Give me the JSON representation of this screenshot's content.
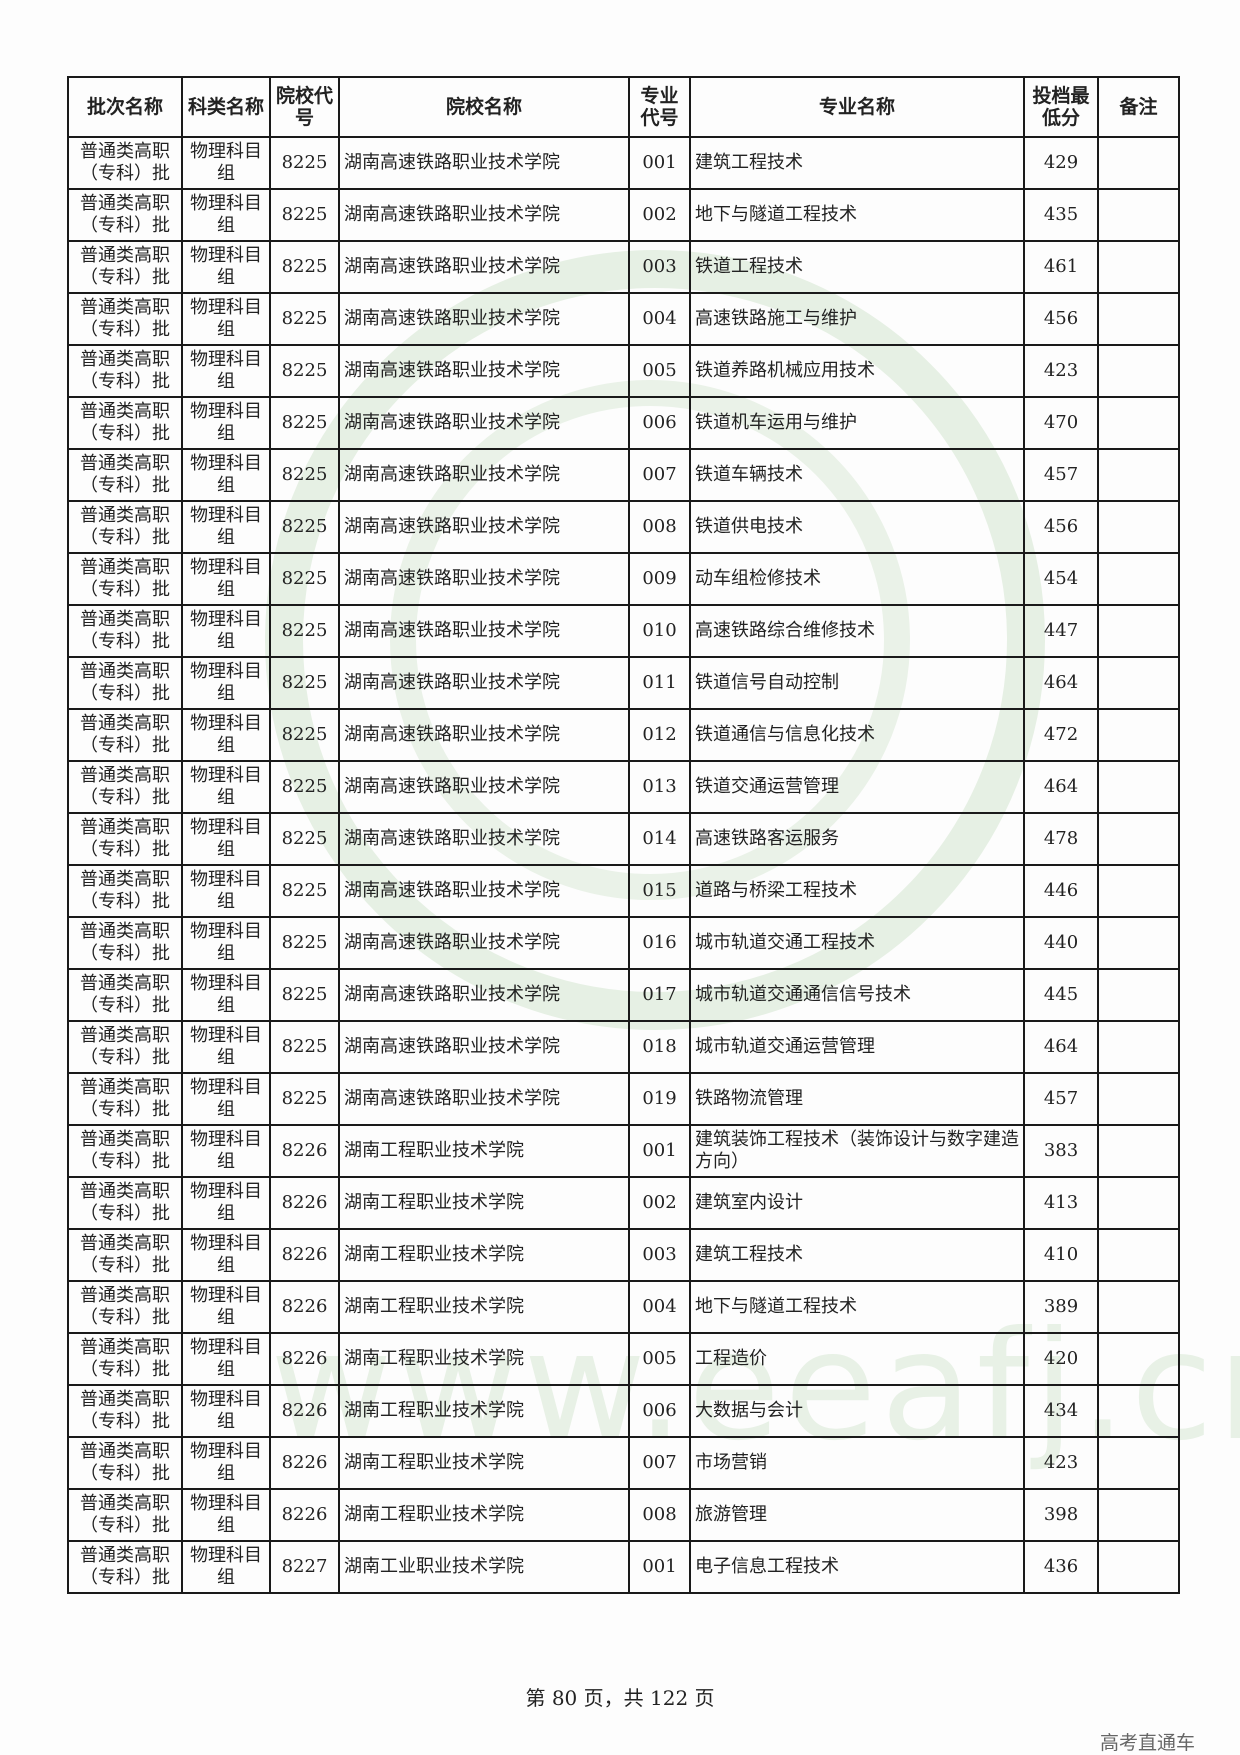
{
  "headers": [
    "批次名称",
    "科类名称",
    "院校代号",
    "院校名称",
    "专业代号",
    "专业名称",
    "投档最低分",
    "备注"
  ],
  "rows": [
    {
      "batch": "普通类高职（专科）批",
      "subject": "物理科目组",
      "school_code": "8225",
      "school": "湖南高速铁路职业技术学院",
      "major_code": "001",
      "major": "建筑工程技术",
      "score": "429",
      "note": ""
    },
    {
      "batch": "普通类高职（专科）批",
      "subject": "物理科目组",
      "school_code": "8225",
      "school": "湖南高速铁路职业技术学院",
      "major_code": "002",
      "major": "地下与隧道工程技术",
      "score": "435",
      "note": ""
    },
    {
      "batch": "普通类高职（专科）批",
      "subject": "物理科目组",
      "school_code": "8225",
      "school": "湖南高速铁路职业技术学院",
      "major_code": "003",
      "major": "铁道工程技术",
      "score": "461",
      "note": ""
    },
    {
      "batch": "普通类高职（专科）批",
      "subject": "物理科目组",
      "school_code": "8225",
      "school": "湖南高速铁路职业技术学院",
      "major_code": "004",
      "major": "高速铁路施工与维护",
      "score": "456",
      "note": ""
    },
    {
      "batch": "普通类高职（专科）批",
      "subject": "物理科目组",
      "school_code": "8225",
      "school": "湖南高速铁路职业技术学院",
      "major_code": "005",
      "major": "铁道养路机械应用技术",
      "score": "423",
      "note": ""
    },
    {
      "batch": "普通类高职（专科）批",
      "subject": "物理科目组",
      "school_code": "8225",
      "school": "湖南高速铁路职业技术学院",
      "major_code": "006",
      "major": "铁道机车运用与维护",
      "score": "470",
      "note": ""
    },
    {
      "batch": "普通类高职（专科）批",
      "subject": "物理科目组",
      "school_code": "8225",
      "school": "湖南高速铁路职业技术学院",
      "major_code": "007",
      "major": "铁道车辆技术",
      "score": "457",
      "note": ""
    },
    {
      "batch": "普通类高职（专科）批",
      "subject": "物理科目组",
      "school_code": "8225",
      "school": "湖南高速铁路职业技术学院",
      "major_code": "008",
      "major": "铁道供电技术",
      "score": "456",
      "note": ""
    },
    {
      "batch": "普通类高职（专科）批",
      "subject": "物理科目组",
      "school_code": "8225",
      "school": "湖南高速铁路职业技术学院",
      "major_code": "009",
      "major": "动车组检修技术",
      "score": "454",
      "note": ""
    },
    {
      "batch": "普通类高职（专科）批",
      "subject": "物理科目组",
      "school_code": "8225",
      "school": "湖南高速铁路职业技术学院",
      "major_code": "010",
      "major": "高速铁路综合维修技术",
      "score": "447",
      "note": ""
    },
    {
      "batch": "普通类高职（专科）批",
      "subject": "物理科目组",
      "school_code": "8225",
      "school": "湖南高速铁路职业技术学院",
      "major_code": "011",
      "major": "铁道信号自动控制",
      "score": "464",
      "note": ""
    },
    {
      "batch": "普通类高职（专科）批",
      "subject": "物理科目组",
      "school_code": "8225",
      "school": "湖南高速铁路职业技术学院",
      "major_code": "012",
      "major": "铁道通信与信息化技术",
      "score": "472",
      "note": ""
    },
    {
      "batch": "普通类高职（专科）批",
      "subject": "物理科目组",
      "school_code": "8225",
      "school": "湖南高速铁路职业技术学院",
      "major_code": "013",
      "major": "铁道交通运营管理",
      "score": "464",
      "note": ""
    },
    {
      "batch": "普通类高职（专科）批",
      "subject": "物理科目组",
      "school_code": "8225",
      "school": "湖南高速铁路职业技术学院",
      "major_code": "014",
      "major": "高速铁路客运服务",
      "score": "478",
      "note": ""
    },
    {
      "batch": "普通类高职（专科）批",
      "subject": "物理科目组",
      "school_code": "8225",
      "school": "湖南高速铁路职业技术学院",
      "major_code": "015",
      "major": "道路与桥梁工程技术",
      "score": "446",
      "note": ""
    },
    {
      "batch": "普通类高职（专科）批",
      "subject": "物理科目组",
      "school_code": "8225",
      "school": "湖南高速铁路职业技术学院",
      "major_code": "016",
      "major": "城市轨道交通工程技术",
      "score": "440",
      "note": ""
    },
    {
      "batch": "普通类高职（专科）批",
      "subject": "物理科目组",
      "school_code": "8225",
      "school": "湖南高速铁路职业技术学院",
      "major_code": "017",
      "major": "城市轨道交通通信信号技术",
      "score": "445",
      "note": ""
    },
    {
      "batch": "普通类高职（专科）批",
      "subject": "物理科目组",
      "school_code": "8225",
      "school": "湖南高速铁路职业技术学院",
      "major_code": "018",
      "major": "城市轨道交通运营管理",
      "score": "464",
      "note": ""
    },
    {
      "batch": "普通类高职（专科）批",
      "subject": "物理科目组",
      "school_code": "8225",
      "school": "湖南高速铁路职业技术学院",
      "major_code": "019",
      "major": "铁路物流管理",
      "score": "457",
      "note": ""
    },
    {
      "batch": "普通类高职（专科）批",
      "subject": "物理科目组",
      "school_code": "8226",
      "school": "湖南工程职业技术学院",
      "major_code": "001",
      "major": "建筑装饰工程技术（装饰设计与数字建造方向）",
      "score": "383",
      "note": ""
    },
    {
      "batch": "普通类高职（专科）批",
      "subject": "物理科目组",
      "school_code": "8226",
      "school": "湖南工程职业技术学院",
      "major_code": "002",
      "major": "建筑室内设计",
      "score": "413",
      "note": ""
    },
    {
      "batch": "普通类高职（专科）批",
      "subject": "物理科目组",
      "school_code": "8226",
      "school": "湖南工程职业技术学院",
      "major_code": "003",
      "major": "建筑工程技术",
      "score": "410",
      "note": ""
    },
    {
      "batch": "普通类高职（专科）批",
      "subject": "物理科目组",
      "school_code": "8226",
      "school": "湖南工程职业技术学院",
      "major_code": "004",
      "major": "地下与隧道工程技术",
      "score": "389",
      "note": ""
    },
    {
      "batch": "普通类高职（专科）批",
      "subject": "物理科目组",
      "school_code": "8226",
      "school": "湖南工程职业技术学院",
      "major_code": "005",
      "major": "工程造价",
      "score": "420",
      "note": ""
    },
    {
      "batch": "普通类高职（专科）批",
      "subject": "物理科目组",
      "school_code": "8226",
      "school": "湖南工程职业技术学院",
      "major_code": "006",
      "major": "大数据与会计",
      "score": "434",
      "note": ""
    },
    {
      "batch": "普通类高职（专科）批",
      "subject": "物理科目组",
      "school_code": "8226",
      "school": "湖南工程职业技术学院",
      "major_code": "007",
      "major": "市场营销",
      "score": "423",
      "note": ""
    },
    {
      "batch": "普通类高职（专科）批",
      "subject": "物理科目组",
      "school_code": "8226",
      "school": "湖南工程职业技术学院",
      "major_code": "008",
      "major": "旅游管理",
      "score": "398",
      "note": ""
    },
    {
      "batch": "普通类高职（专科）批",
      "subject": "物理科目组",
      "school_code": "8227",
      "school": "湖南工业职业技术学院",
      "major_code": "001",
      "major": "电子信息工程技术",
      "score": "436",
      "note": ""
    }
  ],
  "footer": "第 80 页，共 122 页",
  "watermark": {
    "url": "www.eeafj.cn",
    "color": "#96c38c"
  },
  "brand": "高考直通车"
}
